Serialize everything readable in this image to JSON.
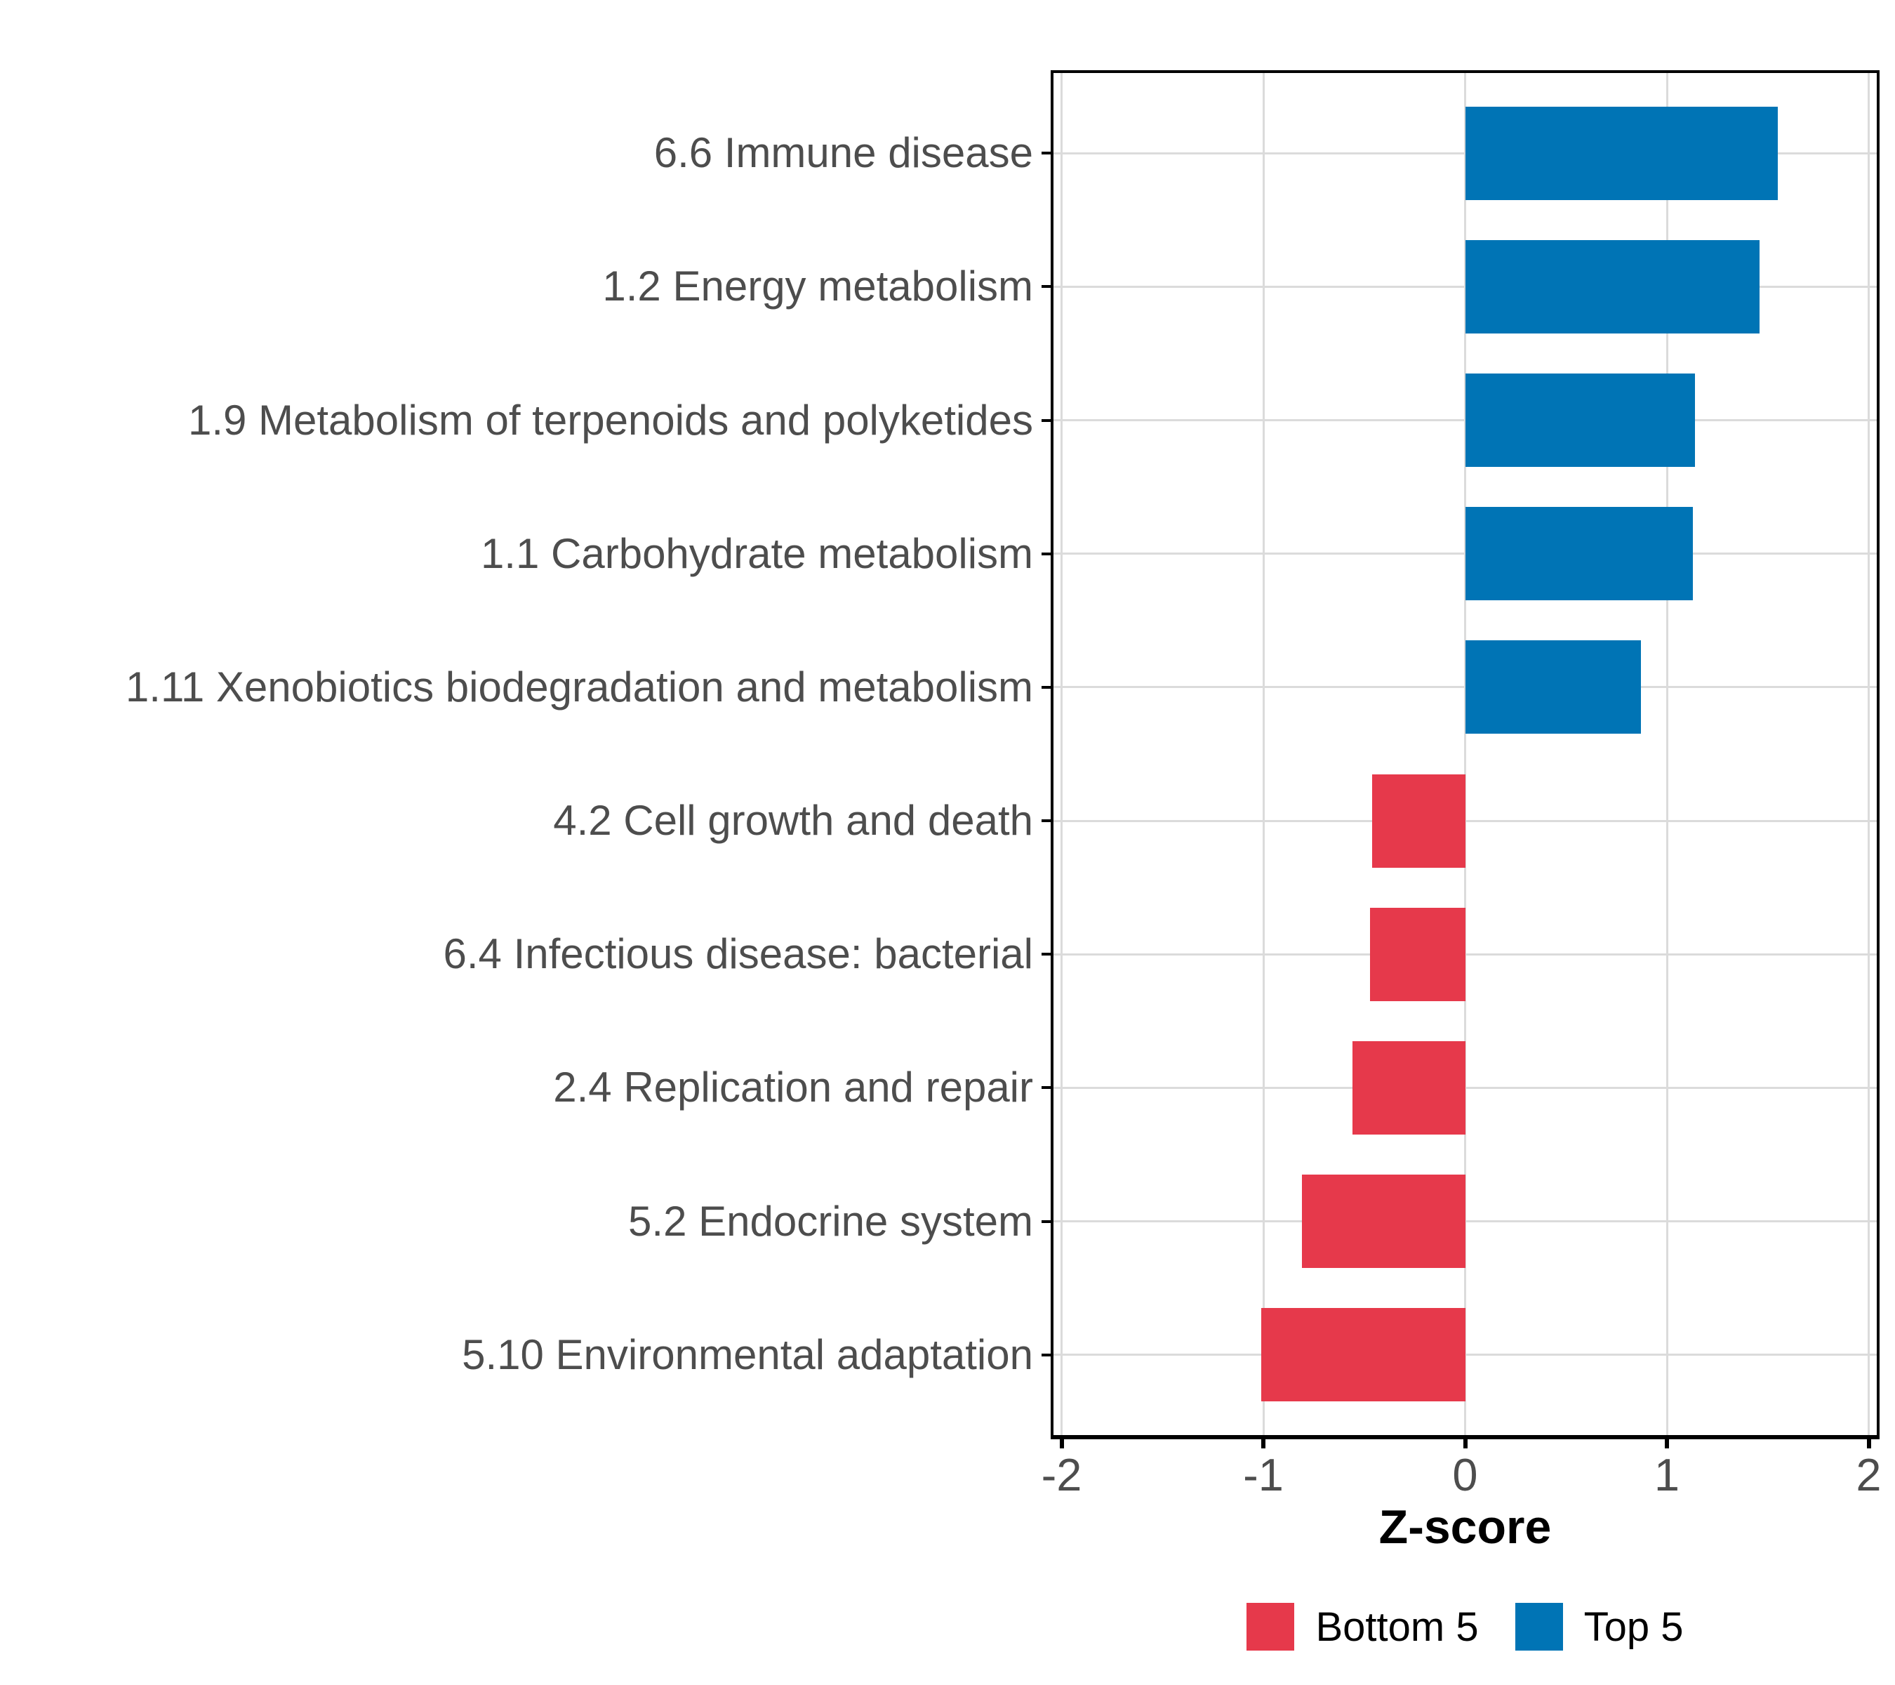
{
  "chart_data": {
    "type": "bar",
    "orientation": "horizontal",
    "title": "",
    "xlabel": "Z-score",
    "ylabel": "",
    "xlim": [
      -2,
      2
    ],
    "x_ticks": [
      "-2",
      "-1",
      "0",
      "1",
      "2"
    ],
    "x_tick_values": [
      -2,
      -1,
      0,
      1,
      2
    ],
    "grid": "major",
    "legend_position": "bottom",
    "categories": [
      "6.6 Immune disease",
      "1.2 Energy metabolism",
      "1.9 Metabolism of terpenoids and polyketides",
      "1.1 Carbohydrate metabolism",
      "1.11 Xenobiotics biodegradation and metabolism",
      "4.2 Cell growth and death",
      "6.4 Infectious disease: bacterial",
      "2.4 Replication and repair",
      "5.2 Endocrine system",
      "5.10 Environmental adaptation"
    ],
    "values": [
      1.55,
      1.46,
      1.14,
      1.13,
      0.87,
      -0.46,
      -0.47,
      -0.56,
      -0.81,
      -1.01
    ],
    "series_by_sign": {
      "positive": "Top 5",
      "negative": "Bottom 5"
    },
    "legend": [
      {
        "label": "Bottom 5",
        "color": "#E6394B"
      },
      {
        "label": "Top 5",
        "color": "#0074B5"
      }
    ]
  },
  "colors": {
    "top5_bar": "#0074B5",
    "bottom5_bar": "#E6394B",
    "gridline": "#DBDBDB",
    "axis_text": "#4D4D4D",
    "axis_line": "#000000",
    "panel_background": "#FFFFFF",
    "page_background": "#FFFFFF"
  }
}
